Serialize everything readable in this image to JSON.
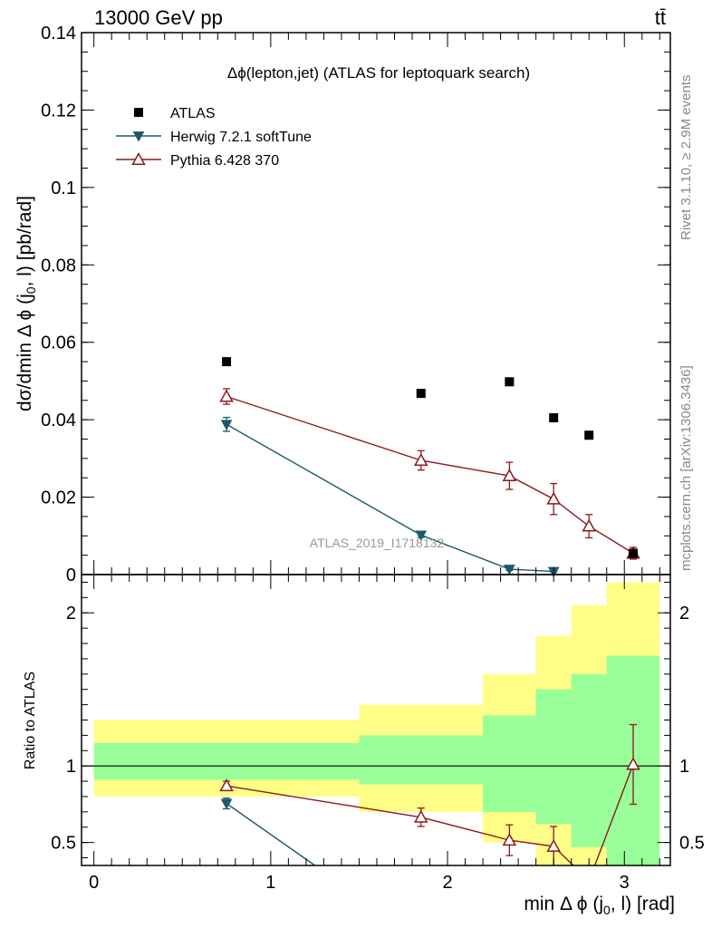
{
  "header": {
    "energy_label": "13000 GeV pp",
    "process_label": "tt̄"
  },
  "side_labels": {
    "rivet": "Rivet 3.1.10, ≥ 2.9M events",
    "mcplots": "mcplots.cern.ch [arXiv:1306.3436]"
  },
  "colors": {
    "data": "#000000",
    "herwig": "#1b5868",
    "pythia": "#8b1a1a",
    "band_outer": "#ffff88",
    "band_inner": "#99ff99"
  },
  "chart_data": [
    {
      "type": "scatter",
      "panel": "main",
      "title": "Δϕ(lepton,jet) (ATLAS for leptoquark search)",
      "watermark": "ATLAS_2019_I1718132",
      "xlabel": "min Δ ϕ (j0, l) [rad]",
      "ylabel": "dσ/dmin Δ ϕ (j0, l) [pb/rad]",
      "xlim": [
        -0.07,
        3.26
      ],
      "ylim": [
        0,
        0.14
      ],
      "y_ticks": [
        "0",
        "0.02",
        "0.04",
        "0.06",
        "0.08",
        "0.1",
        "0.12",
        "0.14"
      ],
      "legend_position": "top-left",
      "series": [
        {
          "name": "ATLAS",
          "marker": "square",
          "x": [
            0.75,
            1.85,
            2.35,
            2.6,
            2.8,
            3.05
          ],
          "y": [
            0.055,
            0.0468,
            0.0498,
            0.0405,
            0.036,
            0.0055
          ]
        },
        {
          "name": "Herwig 7.2.1 softTune",
          "marker": "triangle-down",
          "x": [
            0.75,
            1.85,
            2.35,
            2.6
          ],
          "y": [
            0.0388,
            0.0102,
            0.0014,
            0.0008
          ],
          "yerr": [
            0.0018,
            0.0006,
            0.0003,
            0.0002
          ]
        },
        {
          "name": "Pythia 6.428 370",
          "marker": "triangle-up-open",
          "x": [
            0.75,
            1.85,
            2.35,
            2.6,
            2.8,
            3.05
          ],
          "y": [
            0.046,
            0.0295,
            0.0255,
            0.0195,
            0.0125,
            0.0055
          ],
          "yerr": [
            0.002,
            0.0025,
            0.0035,
            0.004,
            0.003,
            0.0015
          ]
        }
      ]
    },
    {
      "type": "line",
      "panel": "ratio",
      "ylabel": "Ratio to ATLAS",
      "xlabel": "min Δ ϕ (j0, l) [rad]",
      "xlim": [
        -0.07,
        3.26
      ],
      "ylim": [
        0.35,
        2.25
      ],
      "y_ticks": [
        "0.5",
        "1",
        "2"
      ],
      "x_ticks": [
        "0",
        "1",
        "2",
        "3"
      ],
      "bands": {
        "edges": [
          0,
          1.5,
          2.2,
          2.5,
          2.7,
          2.9,
          3.2
        ],
        "outer_low": [
          0.8,
          0.7,
          0.5,
          0.3,
          0.2,
          0.15
        ],
        "outer_high": [
          1.3,
          1.4,
          1.6,
          1.85,
          2.05,
          2.2
        ],
        "inner_low": [
          0.91,
          0.88,
          0.7,
          0.62,
          0.47,
          0.35
        ],
        "inner_high": [
          1.15,
          1.2,
          1.33,
          1.5,
          1.6,
          1.72
        ]
      },
      "series": [
        {
          "name": "Herwig 7.2.1 softTune",
          "marker": "triangle-down",
          "x": [
            0.75,
            1.25
          ],
          "y": [
            0.755,
            0.35
          ],
          "yerr": [
            0.035,
            0
          ],
          "show_marker": [
            true,
            false
          ]
        },
        {
          "name": "Pythia 6.428 370",
          "marker": "triangle-up-open",
          "x": [
            0.75,
            1.85,
            2.35,
            2.6,
            2.8,
            3.05
          ],
          "y": [
            0.87,
            0.665,
            0.515,
            0.475,
            0.25,
            1.01
          ],
          "yerr": [
            0.03,
            0.06,
            0.1,
            0.13,
            0,
            0.26
          ],
          "show_marker": [
            true,
            true,
            true,
            true,
            false,
            true
          ]
        }
      ]
    }
  ]
}
